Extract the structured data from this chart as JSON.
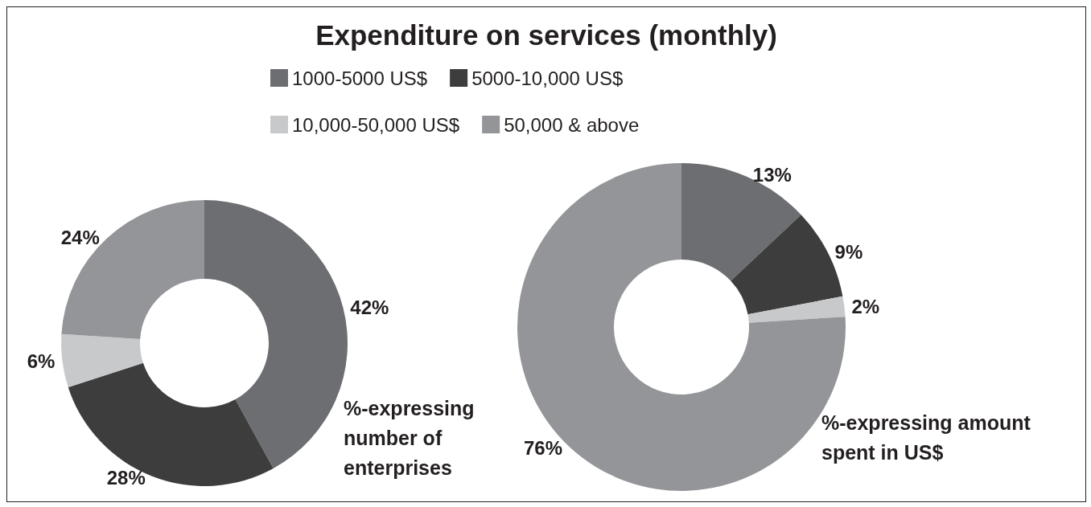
{
  "chart_data": {
    "type": "donut",
    "title": "Expenditure on services (monthly)",
    "categories": [
      "1000-5000 US$",
      "5000-10,000 US$",
      "10,000-50,000 US$",
      "50,000 & above"
    ],
    "colors": [
      "#6d6e71",
      "#3d3d3d",
      "#c8c9cb",
      "#939598"
    ],
    "legend": "top",
    "series": [
      {
        "name": "%-expressing number of enterprises",
        "values": [
          42,
          28,
          6,
          24
        ],
        "value_labels": [
          "42%",
          "28%",
          "6%",
          "24%"
        ]
      },
      {
        "name": "%-expressing amount spent in US$",
        "values": [
          13,
          9,
          2,
          76
        ],
        "value_labels": [
          "13%",
          "9%",
          "2%",
          "76%"
        ]
      }
    ]
  }
}
